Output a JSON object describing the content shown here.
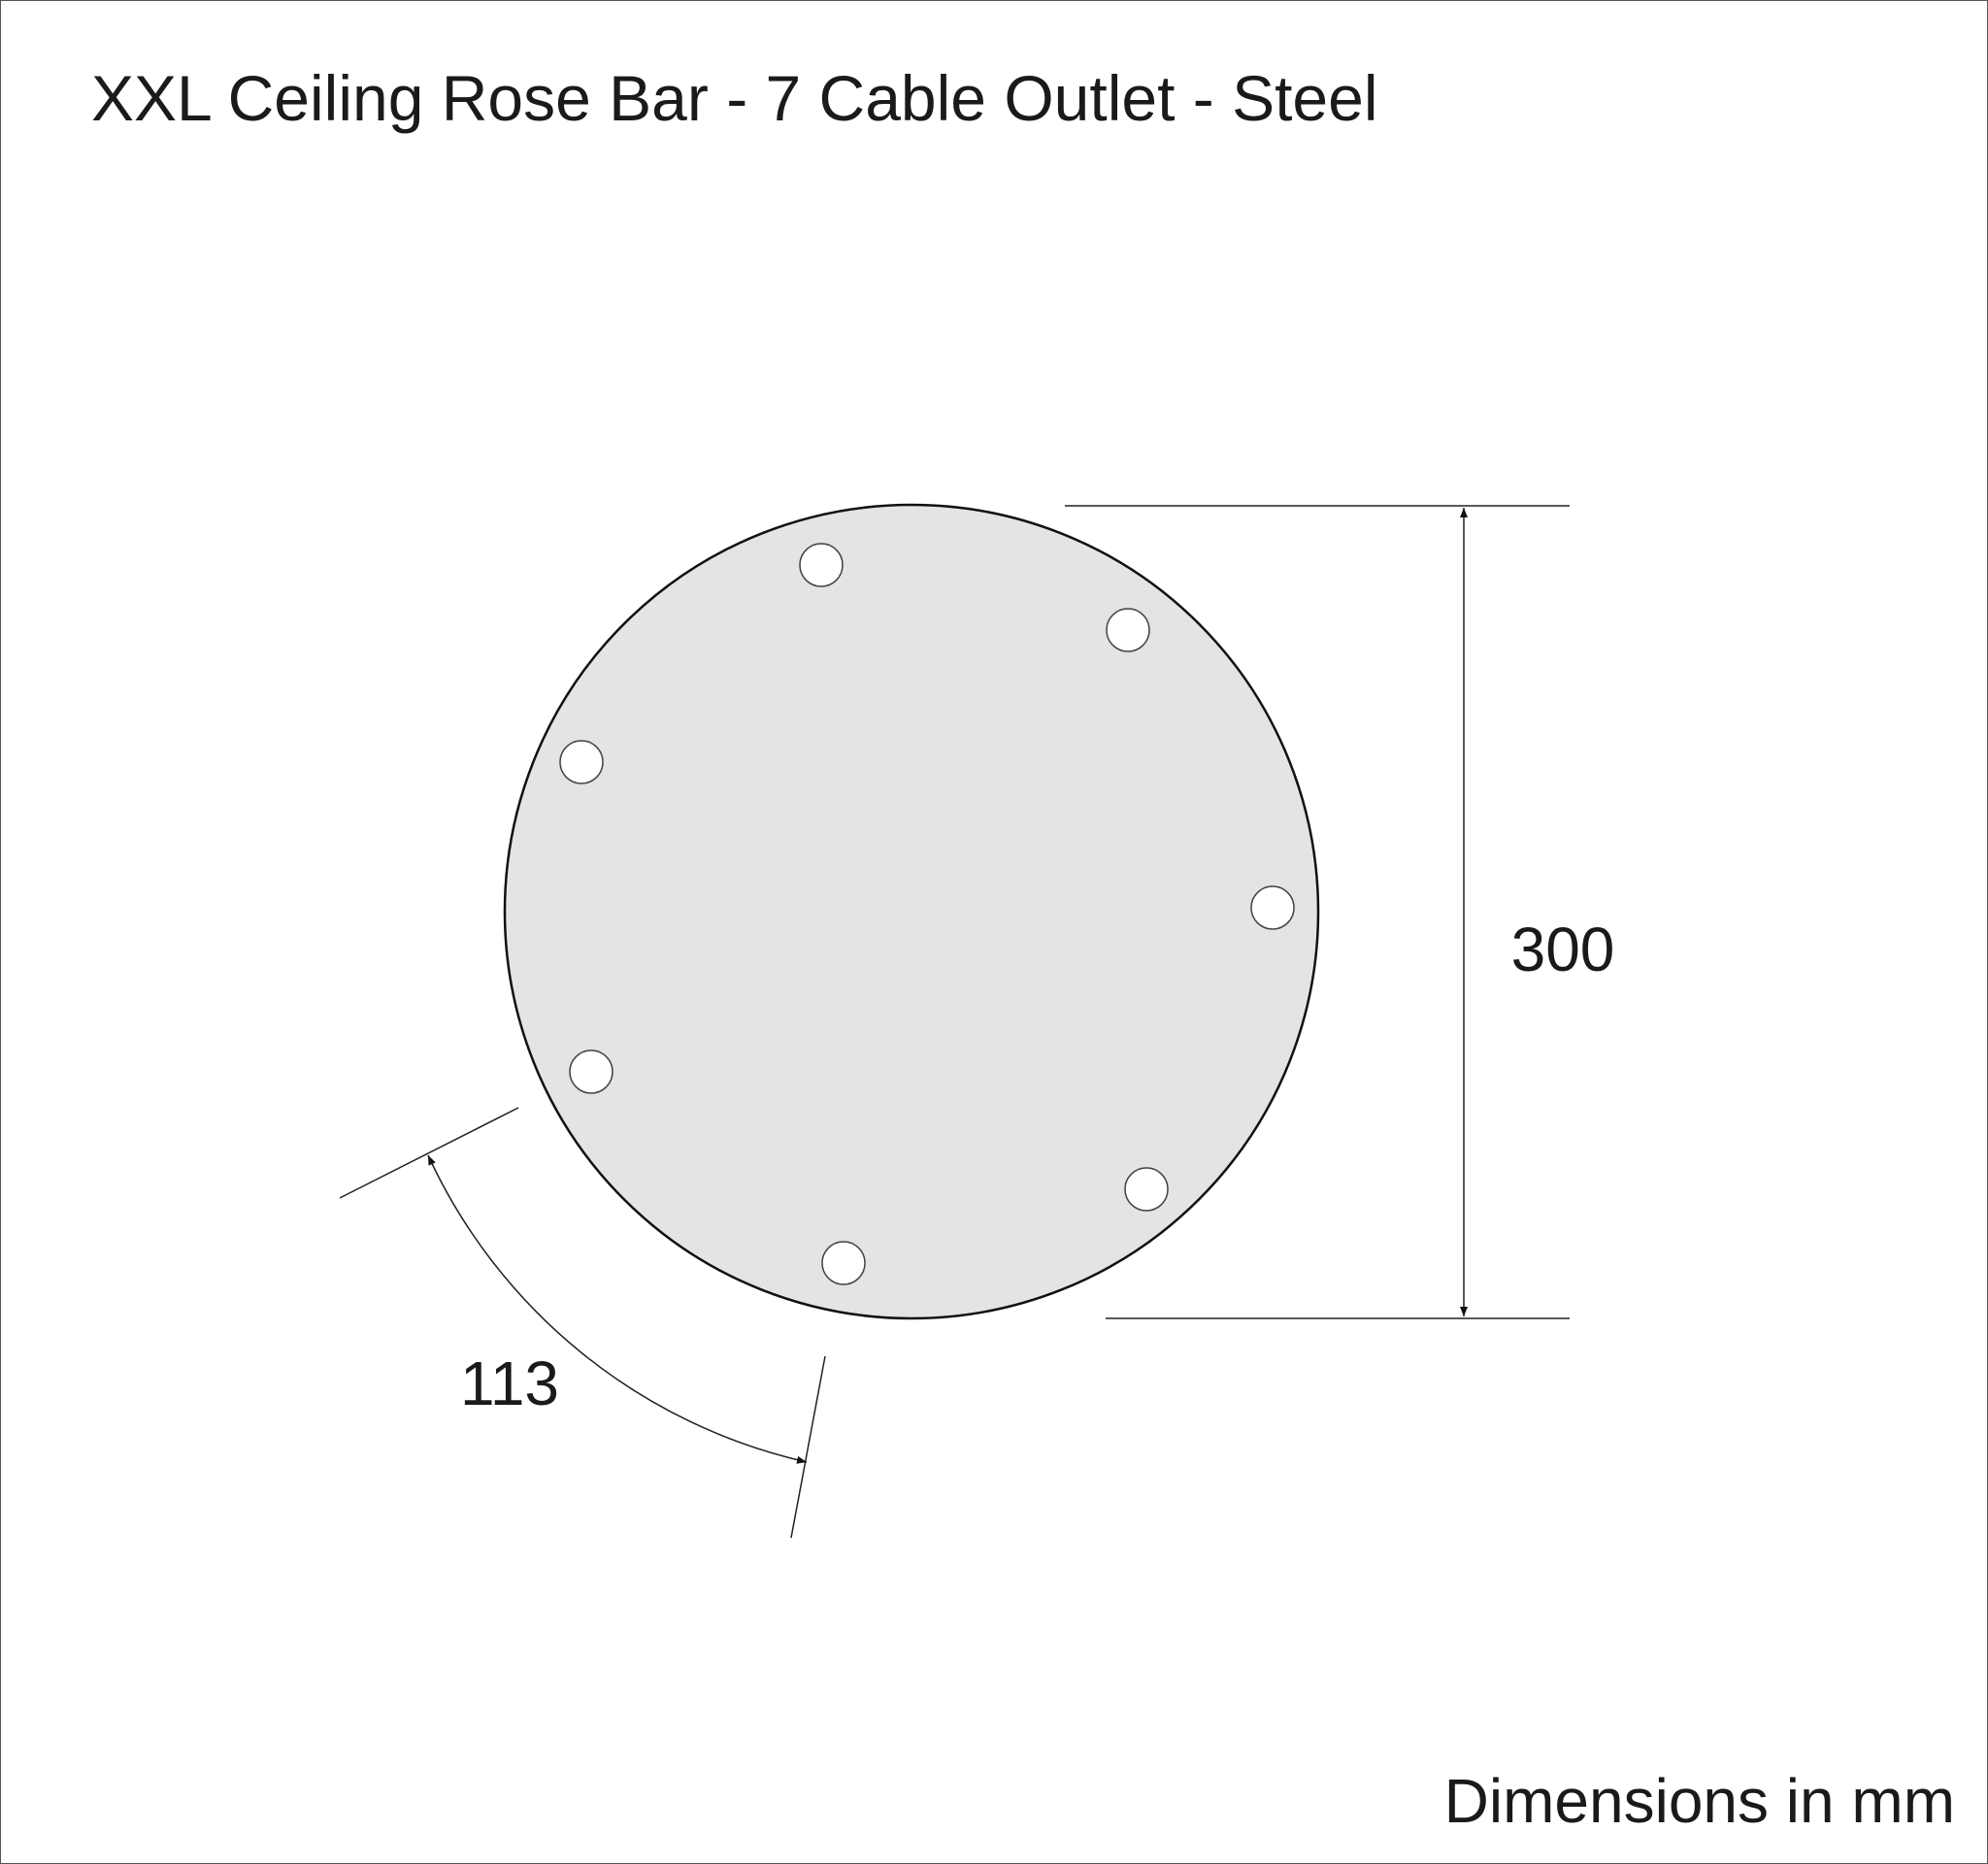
{
  "title": "XXL Ceiling Rose Bar - 7 Cable Outlet - Steel",
  "dimensions": {
    "diameter": "300",
    "arc_spacing": "113"
  },
  "note": "Dimensions in mm",
  "colors": {
    "plate_fill": "#e4e4e4",
    "outline": "#111111",
    "hole_fill": "#ffffff"
  },
  "holes_count": 7
}
